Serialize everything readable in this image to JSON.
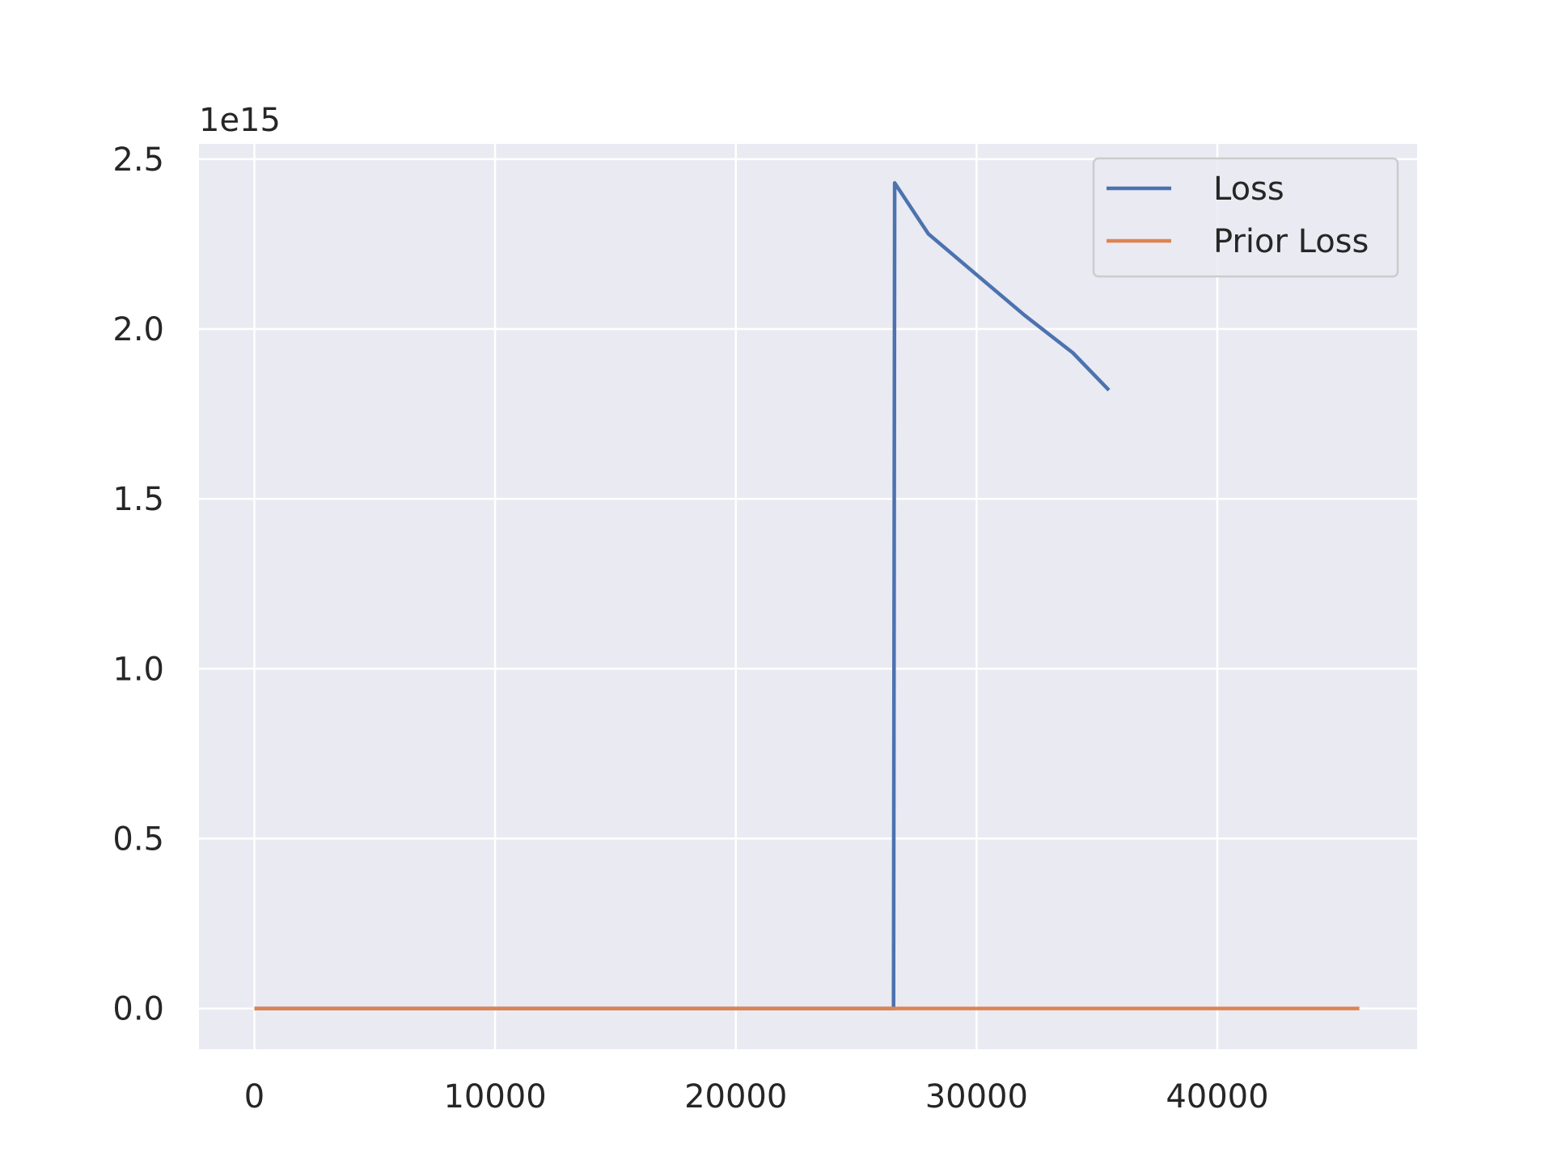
{
  "chart_data": {
    "type": "line",
    "title": "",
    "xlabel": "",
    "ylabel": "",
    "y_offset_text": "1e15",
    "xlim": [
      -2300,
      48300
    ],
    "ylim": [
      -0.12,
      2.545
    ],
    "x_ticks": [
      0,
      10000,
      20000,
      30000,
      40000
    ],
    "x_tick_labels": [
      "0",
      "10000",
      "20000",
      "30000",
      "40000"
    ],
    "y_ticks": [
      0.0,
      0.5,
      1.0,
      1.5,
      2.0,
      2.5
    ],
    "y_tick_labels": [
      "0.0",
      "0.5",
      "1.0",
      "1.5",
      "2.0",
      "2.5"
    ],
    "grid": true,
    "legend_position": "upper right",
    "colors": {
      "background": "#eaeaf2",
      "grid": "#ffffff",
      "Loss": "#4c72b0",
      "Prior Loss": "#dd8452"
    },
    "series": [
      {
        "name": "Loss",
        "color": "#4c72b0",
        "x": [
          0,
          26500,
          26550,
          26600,
          28000,
          30000,
          32000,
          34000,
          35500
        ],
        "y": [
          0.0,
          0.0,
          0.0,
          2.43,
          2.28,
          2.16,
          2.04,
          1.93,
          1.82
        ]
      },
      {
        "name": "Prior Loss",
        "color": "#dd8452",
        "x": [
          0,
          10000,
          20000,
          30000,
          40000,
          45900
        ],
        "y": [
          0.0,
          0.0,
          0.0,
          0.0,
          0.0,
          0.0
        ]
      }
    ]
  }
}
